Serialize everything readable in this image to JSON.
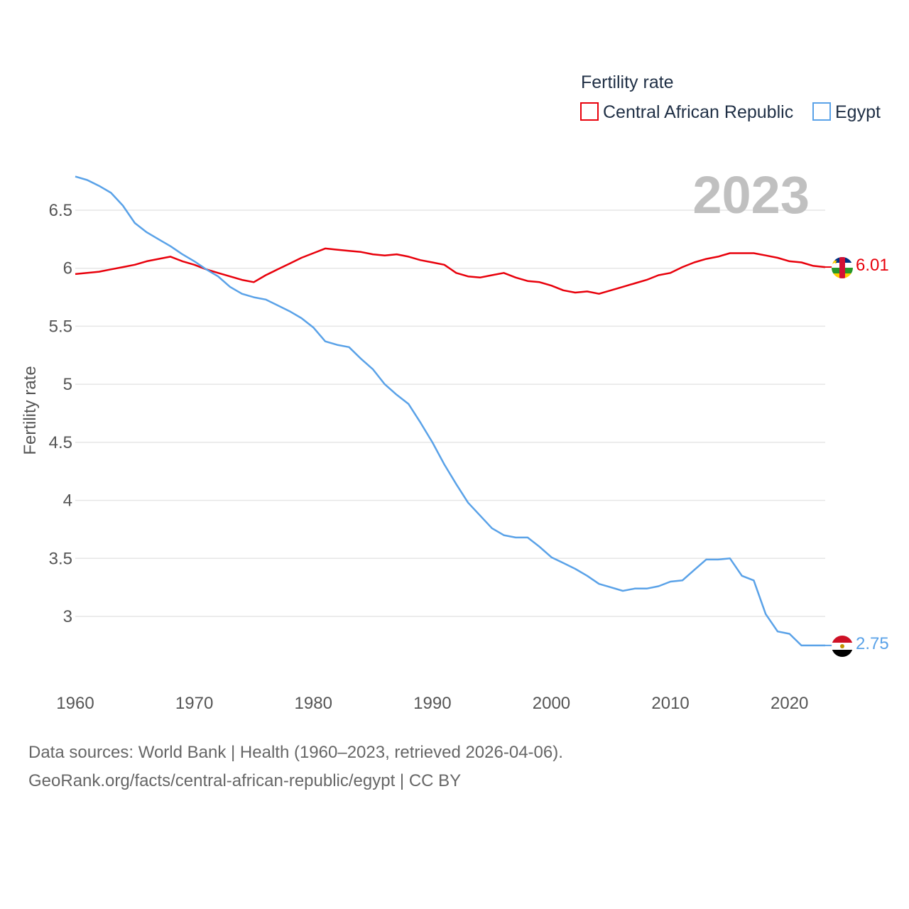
{
  "chart_data": {
    "type": "line",
    "title": "",
    "xlabel": "",
    "ylabel": "Fertility rate",
    "xlim": [
      1960,
      2023
    ],
    "ylim": [
      2.5,
      6.85
    ],
    "year_label": "2023",
    "legend": {
      "title": "Fertility rate",
      "placement": "top-right"
    },
    "x_ticks": [
      {
        "value": 1960,
        "label": "1960"
      },
      {
        "value": 1970,
        "label": "1970"
      },
      {
        "value": 1980,
        "label": "1980"
      },
      {
        "value": 1990,
        "label": "1990"
      },
      {
        "value": 2000,
        "label": "2000"
      },
      {
        "value": 2010,
        "label": "2010"
      },
      {
        "value": 2020,
        "label": "2020"
      }
    ],
    "y_ticks": [
      {
        "value": 3,
        "label": "3"
      },
      {
        "value": 3.5,
        "label": "3.5"
      },
      {
        "value": 4,
        "label": "4"
      },
      {
        "value": 4.5,
        "label": "4.5"
      },
      {
        "value": 5,
        "label": "5"
      },
      {
        "value": 5.5,
        "label": "5.5"
      },
      {
        "value": 6,
        "label": "6"
      },
      {
        "value": 6.5,
        "label": "6.5"
      }
    ],
    "x": [
      1960,
      1961,
      1962,
      1963,
      1964,
      1965,
      1966,
      1967,
      1968,
      1969,
      1970,
      1971,
      1972,
      1973,
      1974,
      1975,
      1976,
      1977,
      1978,
      1979,
      1980,
      1981,
      1982,
      1983,
      1984,
      1985,
      1986,
      1987,
      1988,
      1989,
      1990,
      1991,
      1992,
      1993,
      1994,
      1995,
      1996,
      1997,
      1998,
      1999,
      2000,
      2001,
      2002,
      2003,
      2004,
      2005,
      2006,
      2007,
      2008,
      2009,
      2010,
      2011,
      2012,
      2013,
      2014,
      2015,
      2016,
      2017,
      2018,
      2019,
      2020,
      2021,
      2022,
      2023
    ],
    "series": [
      {
        "name": "Central African Republic",
        "color": "#e8000b",
        "end_label": "6.01",
        "flag": "central-african-republic-flag-icon",
        "values": [
          5.95,
          5.96,
          5.97,
          5.99,
          6.01,
          6.03,
          6.06,
          6.08,
          6.1,
          6.06,
          6.03,
          5.99,
          5.96,
          5.93,
          5.9,
          5.88,
          5.94,
          5.99,
          6.04,
          6.09,
          6.13,
          6.17,
          6.16,
          6.15,
          6.14,
          6.12,
          6.11,
          6.12,
          6.1,
          6.07,
          6.05,
          6.03,
          5.96,
          5.93,
          5.92,
          5.94,
          5.96,
          5.92,
          5.89,
          5.88,
          5.85,
          5.81,
          5.79,
          5.8,
          5.78,
          5.81,
          5.84,
          5.87,
          5.9,
          5.94,
          5.96,
          6.01,
          6.05,
          6.08,
          6.1,
          6.13,
          6.13,
          6.13,
          6.11,
          6.09,
          6.06,
          6.05,
          6.02,
          6.01
        ]
      },
      {
        "name": "Egypt",
        "color": "#5aa2e8",
        "end_label": "2.75",
        "flag": "egypt-flag-icon",
        "values": [
          6.79,
          6.76,
          6.71,
          6.65,
          6.54,
          6.39,
          6.31,
          6.25,
          6.19,
          6.12,
          6.06,
          5.99,
          5.93,
          5.84,
          5.78,
          5.75,
          5.73,
          5.68,
          5.63,
          5.57,
          5.49,
          5.37,
          5.34,
          5.32,
          5.22,
          5.13,
          5.0,
          4.91,
          4.83,
          4.67,
          4.5,
          4.31,
          4.14,
          3.98,
          3.87,
          3.76,
          3.7,
          3.68,
          3.68,
          3.6,
          3.51,
          3.46,
          3.41,
          3.35,
          3.28,
          3.25,
          3.22,
          3.24,
          3.24,
          3.26,
          3.3,
          3.31,
          3.4,
          3.49,
          3.49,
          3.5,
          3.35,
          3.31,
          3.02,
          2.87,
          2.85,
          2.75,
          2.75,
          2.75
        ]
      }
    ]
  },
  "footer": {
    "sources": "Data sources: World Bank | Health (1960–2023, retrieved 2026-04-06).",
    "link": "GeoRank.org/facts/central-african-republic/egypt | CC BY"
  }
}
